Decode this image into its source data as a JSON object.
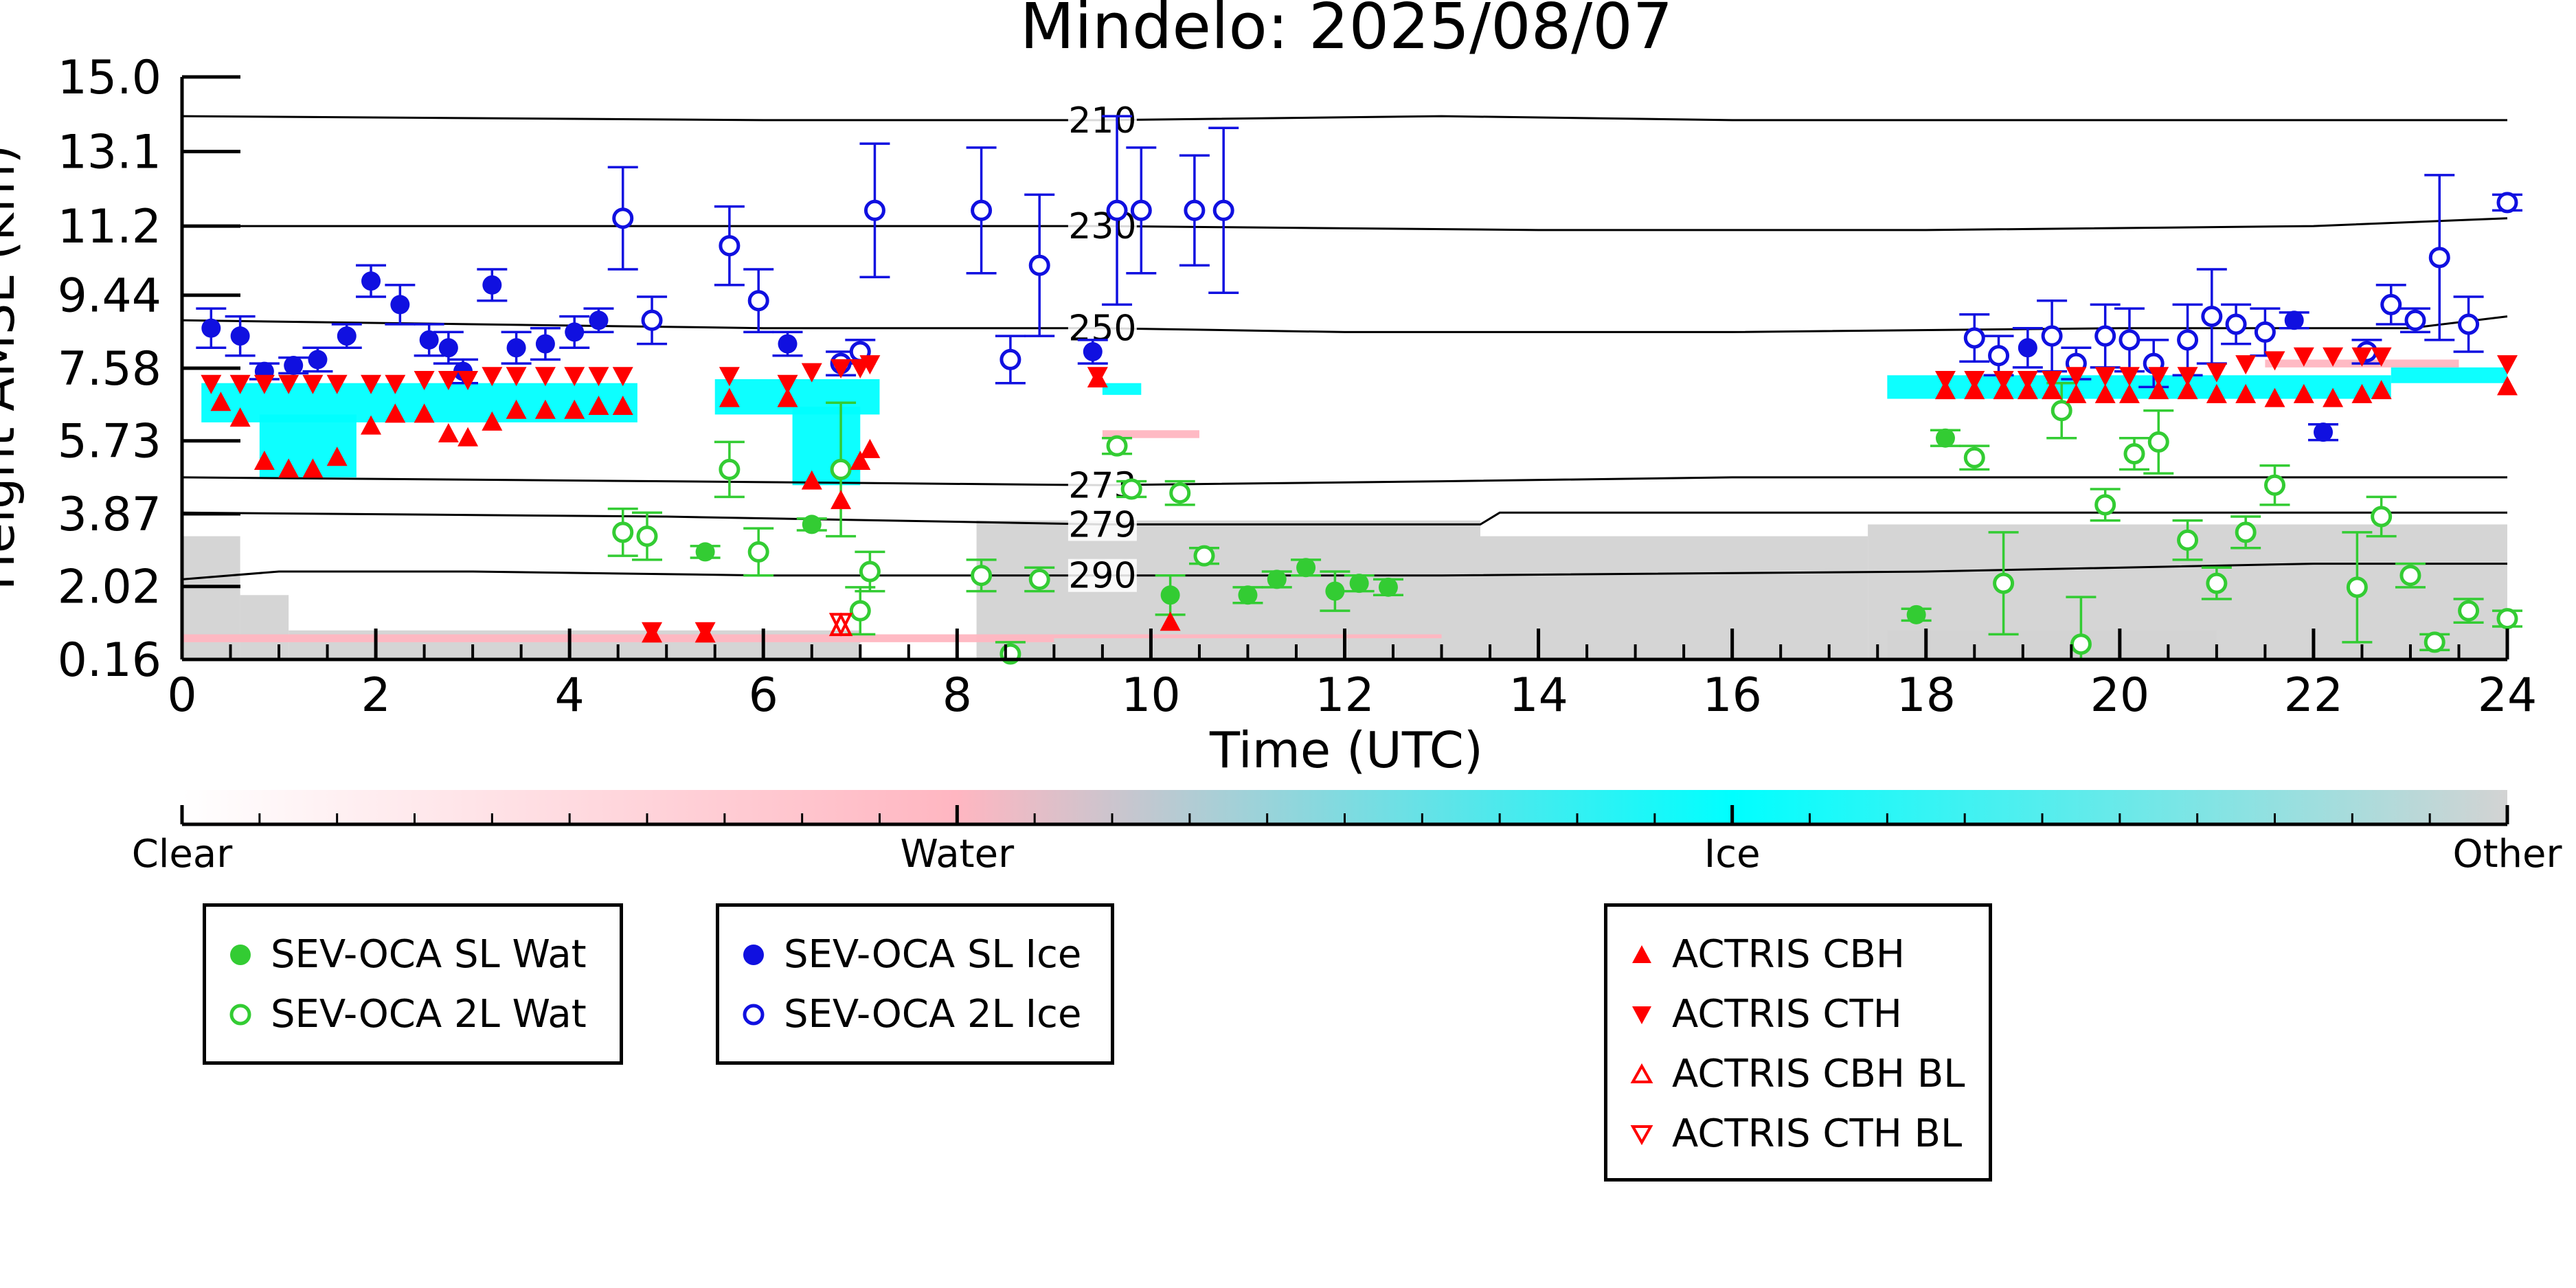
{
  "chart_data": {
    "type": "scatter",
    "title": "Mindelo: 2025/08/07",
    "xlabel": "Time (UTC)",
    "ylabel": "Height AMSL (km)",
    "xlim": [
      0,
      24
    ],
    "ylim": [
      0.16,
      15.0
    ],
    "xticks": [
      "0",
      "2",
      "4",
      "6",
      "8",
      "10",
      "12",
      "14",
      "16",
      "18",
      "20",
      "22",
      "24"
    ],
    "yticks": [
      "0.16",
      "2.02",
      "3.87",
      "5.73",
      "7.58",
      "9.44",
      "11.2",
      "13.1",
      "15.0"
    ],
    "grid": false,
    "temperature_contours": [
      {
        "label": "210",
        "x": [
          0,
          6,
          9.5,
          13,
          16,
          20,
          24
        ],
        "y": [
          14.0,
          13.9,
          13.9,
          14.0,
          13.9,
          13.9,
          13.9
        ]
      },
      {
        "label": "230",
        "x": [
          0,
          5,
          9.5,
          14,
          18,
          22,
          24
        ],
        "y": [
          11.2,
          11.2,
          11.2,
          11.1,
          11.1,
          11.2,
          11.4
        ]
      },
      {
        "label": "250",
        "x": [
          0,
          3,
          6,
          9.5,
          12,
          16,
          20,
          23,
          24
        ],
        "y": [
          8.8,
          8.7,
          8.6,
          8.6,
          8.5,
          8.5,
          8.6,
          8.6,
          8.9
        ]
      },
      {
        "label": "273",
        "x": [
          0,
          5,
          9.5,
          13,
          16,
          20,
          24
        ],
        "y": [
          4.8,
          4.7,
          4.6,
          4.7,
          4.8,
          4.8,
          4.8
        ]
      },
      {
        "label": "279",
        "x": [
          0,
          5,
          9.5,
          13.4,
          13.6,
          18,
          24
        ],
        "y": [
          3.9,
          3.8,
          3.6,
          3.6,
          3.9,
          3.9,
          3.9
        ]
      },
      {
        "label": "290",
        "x": [
          0,
          1,
          3,
          6,
          9.5,
          13,
          18,
          22,
          24
        ],
        "y": [
          2.2,
          2.4,
          2.4,
          2.3,
          2.3,
          2.3,
          2.4,
          2.6,
          2.6
        ]
      }
    ],
    "series": [
      {
        "name": "SEV-OCA SL Wat",
        "marker": "filled-circle",
        "color": "#33cc33",
        "points": [
          [
            5.4,
            2.9
          ],
          [
            6.5,
            3.6
          ],
          [
            10.2,
            1.8
          ],
          [
            11.0,
            1.8
          ],
          [
            11.3,
            2.2
          ],
          [
            11.6,
            2.5
          ],
          [
            11.9,
            1.9
          ],
          [
            12.15,
            2.1
          ],
          [
            12.45,
            2.0
          ],
          [
            17.9,
            1.3
          ],
          [
            18.2,
            5.8
          ]
        ],
        "err": [
          0.15,
          0.15,
          0.5,
          0.2,
          0.2,
          0.2,
          0.5,
          0.2,
          0.2,
          0.15,
          0.2
        ]
      },
      {
        "name": "SEV-OCA 2L Wat",
        "marker": "open-circle",
        "color": "#33cc33",
        "points": [
          [
            4.55,
            3.4
          ],
          [
            4.8,
            3.3
          ],
          [
            5.65,
            5.0
          ],
          [
            5.95,
            2.9
          ],
          [
            6.8,
            5.0
          ],
          [
            7.0,
            1.4
          ],
          [
            7.1,
            2.4
          ],
          [
            8.25,
            2.3
          ],
          [
            8.55,
            0.3
          ],
          [
            8.85,
            2.2
          ],
          [
            9.65,
            5.6
          ],
          [
            9.8,
            4.5
          ],
          [
            10.3,
            4.4
          ],
          [
            10.55,
            2.8
          ],
          [
            18.5,
            5.3
          ],
          [
            18.8,
            2.1
          ],
          [
            19.4,
            6.5
          ],
          [
            19.6,
            0.55
          ],
          [
            19.85,
            4.1
          ],
          [
            20.15,
            5.4
          ],
          [
            20.4,
            5.7
          ],
          [
            20.7,
            3.2
          ],
          [
            21.0,
            2.1
          ],
          [
            21.3,
            3.4
          ],
          [
            21.6,
            4.6
          ],
          [
            22.45,
            2.0
          ],
          [
            22.7,
            3.8
          ],
          [
            23.0,
            2.3
          ],
          [
            23.25,
            0.6
          ],
          [
            23.6,
            1.4
          ],
          [
            24.0,
            1.2
          ]
        ],
        "err": [
          0.6,
          0.6,
          0.7,
          0.6,
          1.7,
          0.6,
          0.5,
          0.4,
          0.3,
          0.3,
          0.2,
          0.2,
          0.3,
          0.2,
          0.3,
          1.3,
          0.7,
          1.2,
          0.4,
          0.4,
          0.8,
          0.5,
          0.4,
          0.4,
          0.5,
          1.4,
          0.5,
          0.3,
          0.2,
          0.3,
          0.2
        ]
      },
      {
        "name": "SEV-OCA SL Ice",
        "marker": "filled-circle",
        "color": "#1010e0",
        "points": [
          [
            0.3,
            8.6
          ],
          [
            0.6,
            8.4
          ],
          [
            0.85,
            7.5
          ],
          [
            1.15,
            7.65
          ],
          [
            1.4,
            7.8
          ],
          [
            1.7,
            8.4
          ],
          [
            1.95,
            9.8
          ],
          [
            2.25,
            9.2
          ],
          [
            2.55,
            8.3
          ],
          [
            2.75,
            8.1
          ],
          [
            2.9,
            7.5
          ],
          [
            3.2,
            9.7
          ],
          [
            3.45,
            8.1
          ],
          [
            3.75,
            8.2
          ],
          [
            4.05,
            8.5
          ],
          [
            4.3,
            8.8
          ],
          [
            6.25,
            8.2
          ],
          [
            9.4,
            8.0
          ],
          [
            19.05,
            8.1
          ],
          [
            21.8,
            8.8
          ],
          [
            22.1,
            5.95
          ]
        ],
        "err": [
          0.5,
          0.5,
          0.2,
          0.2,
          0.3,
          0.3,
          0.4,
          0.5,
          0.4,
          0.4,
          0.3,
          0.4,
          0.4,
          0.4,
          0.4,
          0.3,
          0.3,
          0.3,
          0.5,
          0.2,
          0.2
        ]
      },
      {
        "name": "SEV-OCA 2L Ice",
        "marker": "open-circle",
        "color": "#1010e0",
        "points": [
          [
            4.55,
            11.4
          ],
          [
            4.85,
            8.8
          ],
          [
            5.65,
            10.7
          ],
          [
            5.95,
            9.3
          ],
          [
            6.8,
            7.7
          ],
          [
            7.0,
            8.0
          ],
          [
            7.15,
            11.6
          ],
          [
            8.25,
            11.6
          ],
          [
            8.55,
            7.8
          ],
          [
            8.85,
            10.2
          ],
          [
            9.65,
            11.6
          ],
          [
            9.9,
            11.6
          ],
          [
            10.45,
            11.6
          ],
          [
            10.75,
            11.6
          ],
          [
            18.5,
            8.35
          ],
          [
            18.75,
            7.9
          ],
          [
            19.3,
            8.4
          ],
          [
            19.55,
            7.7
          ],
          [
            19.85,
            8.4
          ],
          [
            20.1,
            8.3
          ],
          [
            20.35,
            7.7
          ],
          [
            20.7,
            8.3
          ],
          [
            20.95,
            8.9
          ],
          [
            21.2,
            8.7
          ],
          [
            21.5,
            8.5
          ],
          [
            22.55,
            8.0
          ],
          [
            22.8,
            9.2
          ],
          [
            23.05,
            8.8
          ],
          [
            23.3,
            10.4
          ],
          [
            23.6,
            8.7
          ],
          [
            24.0,
            11.8
          ]
        ],
        "err": [
          1.3,
          0.6,
          1.0,
          0.8,
          0.3,
          0.3,
          1.7,
          1.6,
          0.6,
          1.8,
          2.4,
          1.6,
          1.4,
          2.1,
          0.6,
          0.5,
          0.9,
          0.4,
          0.8,
          0.8,
          0.6,
          0.9,
          1.2,
          0.5,
          0.6,
          0.3,
          0.5,
          0.3,
          2.1,
          0.7,
          0.2
        ]
      },
      {
        "name": "ACTRIS CBH",
        "marker": "filled-triangle-up",
        "color": "#ff0000",
        "points": [
          [
            0.4,
            6.7
          ],
          [
            0.6,
            6.3
          ],
          [
            0.85,
            5.2
          ],
          [
            1.1,
            5.0
          ],
          [
            1.35,
            5.0
          ],
          [
            1.6,
            5.3
          ],
          [
            1.95,
            6.1
          ],
          [
            2.2,
            6.4
          ],
          [
            2.5,
            6.4
          ],
          [
            2.75,
            5.9
          ],
          [
            2.95,
            5.8
          ],
          [
            3.2,
            6.2
          ],
          [
            3.45,
            6.5
          ],
          [
            3.75,
            6.5
          ],
          [
            4.05,
            6.5
          ],
          [
            4.3,
            6.6
          ],
          [
            4.55,
            6.6
          ],
          [
            4.85,
            0.8
          ],
          [
            5.4,
            0.8
          ],
          [
            5.65,
            6.8
          ],
          [
            6.25,
            6.8
          ],
          [
            6.5,
            4.7
          ],
          [
            6.8,
            4.2
          ],
          [
            7.0,
            5.2
          ],
          [
            7.1,
            5.5
          ],
          [
            9.45,
            7.3
          ],
          [
            10.2,
            1.1
          ],
          [
            18.2,
            7.0
          ],
          [
            18.5,
            7.0
          ],
          [
            18.8,
            7.0
          ],
          [
            19.05,
            7.0
          ],
          [
            19.3,
            7.0
          ],
          [
            19.55,
            6.9
          ],
          [
            19.85,
            6.9
          ],
          [
            20.1,
            6.9
          ],
          [
            20.4,
            7.0
          ],
          [
            20.7,
            7.0
          ],
          [
            21.0,
            6.9
          ],
          [
            21.3,
            6.9
          ],
          [
            21.6,
            6.8
          ],
          [
            21.9,
            6.9
          ],
          [
            22.2,
            6.8
          ],
          [
            22.5,
            6.9
          ],
          [
            22.7,
            7.0
          ],
          [
            24.0,
            7.1
          ]
        ]
      },
      {
        "name": "ACTRIS CTH",
        "marker": "filled-triangle-down",
        "color": "#ff0000",
        "points": [
          [
            0.3,
            7.2
          ],
          [
            0.6,
            7.2
          ],
          [
            0.85,
            7.2
          ],
          [
            1.1,
            7.2
          ],
          [
            1.35,
            7.2
          ],
          [
            1.6,
            7.2
          ],
          [
            1.95,
            7.2
          ],
          [
            2.2,
            7.2
          ],
          [
            2.5,
            7.3
          ],
          [
            2.75,
            7.3
          ],
          [
            2.95,
            7.3
          ],
          [
            3.2,
            7.4
          ],
          [
            3.45,
            7.4
          ],
          [
            3.75,
            7.4
          ],
          [
            4.05,
            7.4
          ],
          [
            4.3,
            7.4
          ],
          [
            4.55,
            7.4
          ],
          [
            4.85,
            0.9
          ],
          [
            5.4,
            0.9
          ],
          [
            5.65,
            7.4
          ],
          [
            6.25,
            7.2
          ],
          [
            6.5,
            7.5
          ],
          [
            6.8,
            7.6
          ],
          [
            7.0,
            7.6
          ],
          [
            7.1,
            7.7
          ],
          [
            9.45,
            7.4
          ],
          [
            18.2,
            7.3
          ],
          [
            18.5,
            7.3
          ],
          [
            18.8,
            7.3
          ],
          [
            19.05,
            7.3
          ],
          [
            19.3,
            7.3
          ],
          [
            19.55,
            7.4
          ],
          [
            19.85,
            7.4
          ],
          [
            20.1,
            7.4
          ],
          [
            20.4,
            7.4
          ],
          [
            20.7,
            7.4
          ],
          [
            21.0,
            7.5
          ],
          [
            21.3,
            7.7
          ],
          [
            21.6,
            7.8
          ],
          [
            21.9,
            7.9
          ],
          [
            22.2,
            7.9
          ],
          [
            22.5,
            7.9
          ],
          [
            22.7,
            7.9
          ],
          [
            24.0,
            7.7
          ]
        ]
      },
      {
        "name": "ACTRIS CBH BL",
        "marker": "open-triangle-up",
        "color": "#ff0000",
        "points": [
          [
            6.8,
            1.0
          ]
        ]
      },
      {
        "name": "ACTRIS CTH BL",
        "marker": "open-triangle-down",
        "color": "#ff0000",
        "points": [
          [
            6.8,
            1.1
          ]
        ]
      }
    ],
    "classification_colorbar": {
      "labels": [
        "Clear",
        "Water",
        "Ice",
        "Other"
      ],
      "colors": [
        "#ffffff",
        "#ffb6c1",
        "#00ffff",
        "#d3d3d3"
      ]
    }
  },
  "legends": [
    {
      "entries": [
        "SEV-OCA SL Wat",
        "SEV-OCA 2L Wat"
      ]
    },
    {
      "entries": [
        "SEV-OCA SL Ice",
        "SEV-OCA 2L Ice"
      ]
    },
    {
      "entries": [
        "ACTRIS CBH",
        "ACTRIS CTH",
        "ACTRIS CBH BL",
        "ACTRIS CTH BL"
      ]
    }
  ]
}
